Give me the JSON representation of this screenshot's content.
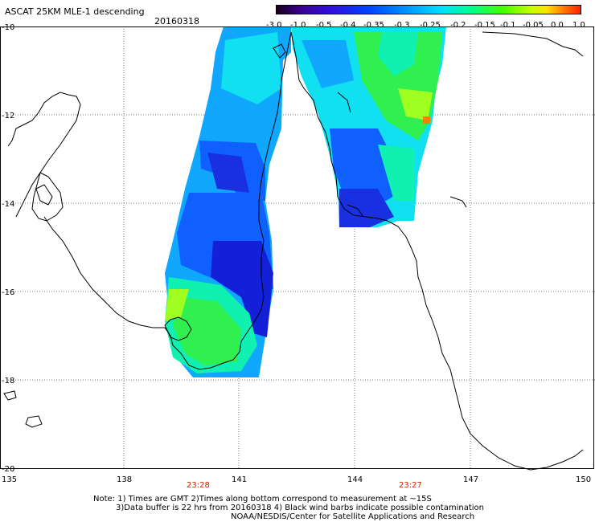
{
  "header": {
    "title": "ASCAT 25KM MLE-1 descending",
    "date": "20160318"
  },
  "colorbar": {
    "labels": [
      "-3.0",
      "-1.0",
      "-0.5",
      "-0.4",
      "-0.35",
      "-0.3",
      "-0.25",
      "-0.2",
      "-0.15",
      "-0.1",
      "-0.05",
      "0.0",
      "1.0"
    ]
  },
  "axes": {
    "lat_labels": [
      "-10",
      "-12",
      "-14",
      "-16",
      "-18",
      "-20"
    ],
    "lon_labels": [
      "135",
      "138",
      "141",
      "144",
      "147",
      "150"
    ]
  },
  "pass_times": [
    "23:28",
    "23:27"
  ],
  "notes": {
    "line1": "Note: 1) Times are GMT 2)Times along bottom correspond to measurement at ~15S",
    "line2": "3)Data buffer is 22 hrs from 20160318 4) Black wind barbs indicate possible contamination",
    "line3": "NOAA/NESDIS/Center for Satellite Applications and Research"
  },
  "colors": {
    "dark_blue": "#1010d0",
    "blue": "#1060ff",
    "sky": "#10a8ff",
    "cyan": "#10e0f0",
    "aqua": "#10f0b0",
    "green": "#30f050",
    "lime": "#a0ff20",
    "orange": "#ff8000"
  }
}
